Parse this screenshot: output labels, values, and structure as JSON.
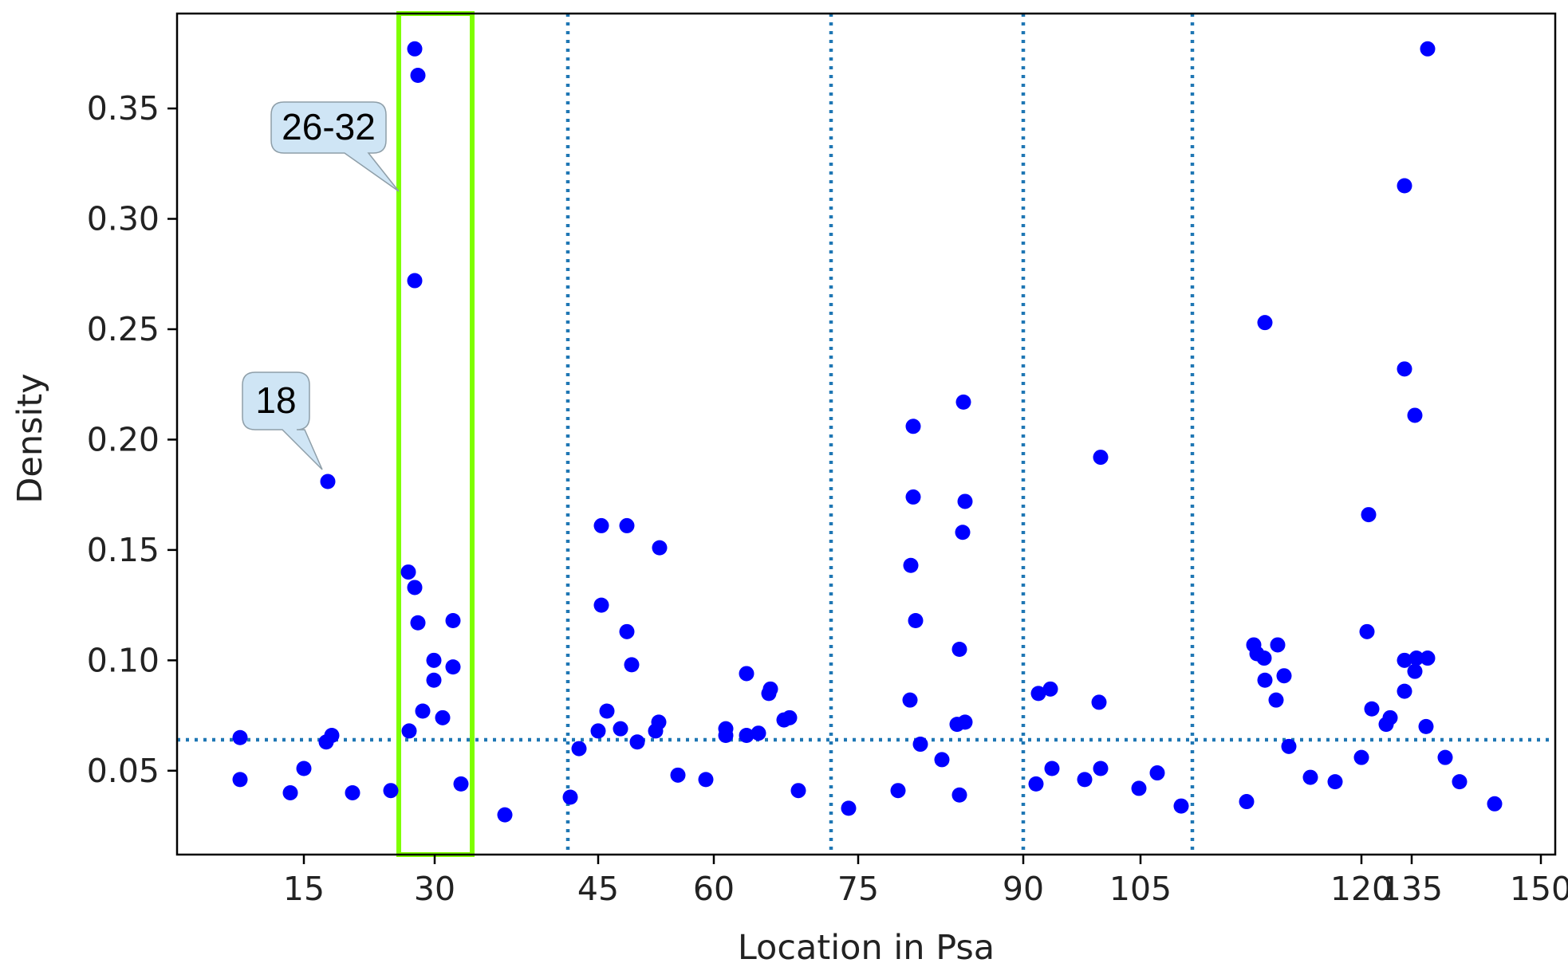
{
  "chart_data": {
    "type": "scatter",
    "title": "",
    "xlabel": "Location in Psa",
    "ylabel": "Density",
    "x_tick_labels": [
      "15",
      "30",
      "45",
      "60",
      "75",
      "90",
      "105",
      "120",
      "135",
      "150"
    ],
    "y_tick_labels": [
      "0.05",
      "0.10",
      "0.15",
      "0.20",
      "0.25",
      "0.30",
      "0.35"
    ],
    "y_ticks": [
      0.05,
      0.1,
      0.15,
      0.2,
      0.25,
      0.3,
      0.35
    ],
    "ylim": [
      0.012,
      0.393
    ],
    "grid": false,
    "point_color": "#0000ff",
    "reference_line_color": "#1f77b4",
    "threshold_y": 0.064,
    "segment_boundaries": [
      "42-43",
      "72-73",
      "90-91",
      "110-111"
    ],
    "highlight": {
      "label": "26-32",
      "color": "#7fff00"
    },
    "annotations": [
      {
        "text": "26-32"
      },
      {
        "text": "18"
      }
    ],
    "points": [
      {
        "pos": 1,
        "y": 0.065
      },
      {
        "pos": 1,
        "y": 0.046
      },
      {
        "pos": 8,
        "y": 0.04
      },
      {
        "pos": 10,
        "y": 0.051
      },
      {
        "pos": 12,
        "y": 0.063
      },
      {
        "pos": 13,
        "y": 0.066
      },
      {
        "pos": 15,
        "y": 0.04
      },
      {
        "pos": 18,
        "y": 0.181
      },
      {
        "pos": 21,
        "y": 0.041
      },
      {
        "pos": 26,
        "y": 0.14
      },
      {
        "pos": 26,
        "y": 0.068
      },
      {
        "pos": 27,
        "y": 0.377
      },
      {
        "pos": 27,
        "y": 0.272
      },
      {
        "pos": 27,
        "y": 0.133
      },
      {
        "pos": 28,
        "y": 0.365
      },
      {
        "pos": 28,
        "y": 0.117
      },
      {
        "pos": 28,
        "y": 0.077
      },
      {
        "pos": 29,
        "y": 0.1
      },
      {
        "pos": 29,
        "y": 0.091
      },
      {
        "pos": 30,
        "y": 0.074
      },
      {
        "pos": 31,
        "y": 0.118
      },
      {
        "pos": 31,
        "y": 0.097
      },
      {
        "pos": 32,
        "y": 0.044
      },
      {
        "pos": 35,
        "y": 0.03
      },
      {
        "pos": 42,
        "y": 0.038
      },
      {
        "pos": 43,
        "y": 0.06
      },
      {
        "pos": 45,
        "y": 0.068
      },
      {
        "pos": 46,
        "y": 0.161
      },
      {
        "pos": 46,
        "y": 0.125
      },
      {
        "pos": 47,
        "y": 0.077
      },
      {
        "pos": 48,
        "y": 0.069
      },
      {
        "pos": 49,
        "y": 0.161
      },
      {
        "pos": 49,
        "y": 0.113
      },
      {
        "pos": 50,
        "y": 0.098
      },
      {
        "pos": 51,
        "y": 0.063
      },
      {
        "pos": 52,
        "y": 0.068
      },
      {
        "pos": 53,
        "y": 0.072
      },
      {
        "pos": 53,
        "y": 0.151
      },
      {
        "pos": 55,
        "y": 0.048
      },
      {
        "pos": 58,
        "y": 0.046
      },
      {
        "pos": 60,
        "y": 0.069
      },
      {
        "pos": 60,
        "y": 0.066
      },
      {
        "pos": 62,
        "y": 0.066
      },
      {
        "pos": 62,
        "y": 0.094
      },
      {
        "pos": 63,
        "y": 0.067
      },
      {
        "pos": 64,
        "y": 0.087
      },
      {
        "pos": 64,
        "y": 0.085
      },
      {
        "pos": 65,
        "y": 0.073
      },
      {
        "pos": 66,
        "y": 0.074
      },
      {
        "pos": 68,
        "y": 0.041
      },
      {
        "pos": 74,
        "y": 0.033
      },
      {
        "pos": 77,
        "y": 0.041
      },
      {
        "pos": 79,
        "y": 0.082
      },
      {
        "pos": 79,
        "y": 0.143
      },
      {
        "pos": 80,
        "y": 0.206
      },
      {
        "pos": 80,
        "y": 0.174
      },
      {
        "pos": 80,
        "y": 0.118
      },
      {
        "pos": 81,
        "y": 0.062
      },
      {
        "pos": 82,
        "y": 0.055
      },
      {
        "pos": 84,
        "y": 0.071
      },
      {
        "pos": 85,
        "y": 0.217
      },
      {
        "pos": 85,
        "y": 0.158
      },
      {
        "pos": 85,
        "y": 0.105
      },
      {
        "pos": 85,
        "y": 0.072
      },
      {
        "pos": 86,
        "y": 0.172
      },
      {
        "pos": 87,
        "y": 0.039
      },
      {
        "pos": 91,
        "y": 0.044
      },
      {
        "pos": 92,
        "y": 0.085
      },
      {
        "pos": 93,
        "y": 0.087
      },
      {
        "pos": 94,
        "y": 0.051
      },
      {
        "pos": 96,
        "y": 0.046
      },
      {
        "pos": 97,
        "y": 0.081
      },
      {
        "pos": 98,
        "y": 0.192
      },
      {
        "pos": 98,
        "y": 0.051
      },
      {
        "pos": 101,
        "y": 0.042
      },
      {
        "pos": 103,
        "y": 0.049
      },
      {
        "pos": 107,
        "y": 0.034
      },
      {
        "pos": 114,
        "y": 0.036
      },
      {
        "pos": 116,
        "y": 0.107
      },
      {
        "pos": 116,
        "y": 0.103
      },
      {
        "pos": 117,
        "y": 0.101
      },
      {
        "pos": 117,
        "y": 0.091
      },
      {
        "pos": 118,
        "y": 0.253
      },
      {
        "pos": 119,
        "y": 0.082
      },
      {
        "pos": 119,
        "y": 0.107
      },
      {
        "pos": 120,
        "y": 0.093
      },
      {
        "pos": 121,
        "y": 0.061
      },
      {
        "pos": 123,
        "y": 0.047
      },
      {
        "pos": 125,
        "y": 0.045
      },
      {
        "pos": 128,
        "y": 0.056
      },
      {
        "pos": 129,
        "y": 0.113
      },
      {
        "pos": 129,
        "y": 0.166
      },
      {
        "pos": 130,
        "y": 0.078
      },
      {
        "pos": 131,
        "y": 0.071
      },
      {
        "pos": 132,
        "y": 0.074
      },
      {
        "pos": 133,
        "y": 0.315
      },
      {
        "pos": 133,
        "y": 0.232
      },
      {
        "pos": 133,
        "y": 0.1
      },
      {
        "pos": 133,
        "y": 0.086
      },
      {
        "pos": 134,
        "y": 0.101
      },
      {
        "pos": 134,
        "y": 0.095
      },
      {
        "pos": 134,
        "y": 0.211
      },
      {
        "pos": 135,
        "y": 0.377
      },
      {
        "pos": 135,
        "y": 0.101
      },
      {
        "pos": 135,
        "y": 0.07
      },
      {
        "pos": 136,
        "y": 0.056
      },
      {
        "pos": 137,
        "y": 0.045
      },
      {
        "pos": 139,
        "y": 0.035
      }
    ]
  }
}
